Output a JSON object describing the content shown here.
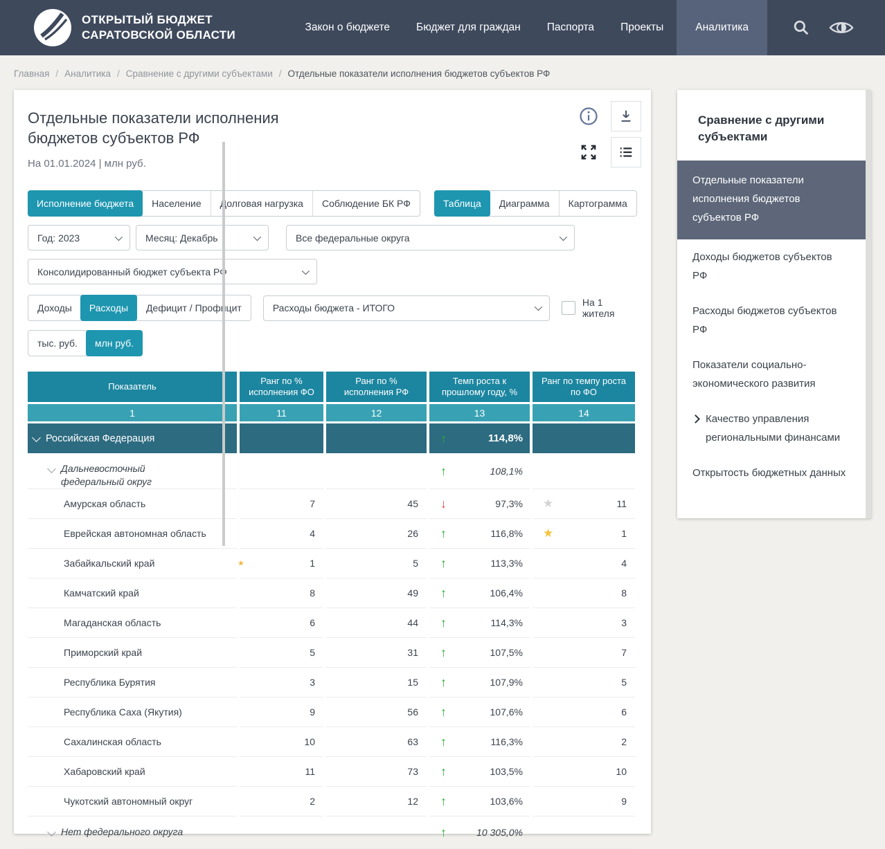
{
  "brand": {
    "line1": "ОТКРЫТЫЙ БЮДЖЕТ",
    "line2": "САРАТОВСКОЙ ОБЛАСТИ"
  },
  "nav": {
    "items": [
      {
        "label": "Закон о бюджете",
        "active": false
      },
      {
        "label": "Бюджет для граждан",
        "active": false
      },
      {
        "label": "Паспорта",
        "active": false
      },
      {
        "label": "Проекты",
        "active": false
      },
      {
        "label": "Аналитика",
        "active": true
      }
    ]
  },
  "breadcrumbs": [
    "Главная",
    "Аналитика",
    "Сравнение с другими субъектами",
    "Отдельные показатели исполнения бюджетов субъектов РФ"
  ],
  "page": {
    "title": "Отдельные показатели исполнения бюджетов субъектов РФ",
    "date_units": "На 01.01.2024 | млн руб."
  },
  "metric_tabs": [
    {
      "label": "Исполнение бюджета",
      "active": true
    },
    {
      "label": "Население",
      "active": false
    },
    {
      "label": "Долговая нагрузка",
      "active": false
    },
    {
      "label": "Соблюдение БК РФ",
      "active": false
    }
  ],
  "view_tabs": [
    {
      "label": "Таблица",
      "active": true
    },
    {
      "label": "Диаграмма",
      "active": false
    },
    {
      "label": "Картограмма",
      "active": false
    }
  ],
  "filters": {
    "year": "Год: 2023",
    "month": "Месяц: Декабрь",
    "district": "Все федеральные округа",
    "budget": "Консолидированный бюджет субъекта РФ",
    "indicator": "Расходы бюджета - ИТОГО",
    "per_capita_label": "На 1 жителя",
    "per_capita_checked": false
  },
  "measure_tabs": [
    {
      "label": "Доходы",
      "active": false
    },
    {
      "label": "Расходы",
      "active": true
    },
    {
      "label": "Дефицит / Профицит",
      "active": false
    }
  ],
  "unit_tabs": [
    {
      "label": "тыс. руб.",
      "active": false
    },
    {
      "label": "млн руб.",
      "active": true
    }
  ],
  "table": {
    "headers": [
      "Показатель",
      "Ранг по % исполнения ФО",
      "Ранг по % исполнения РФ",
      "Темп роста к прошлому году, %",
      "Ранг по темпу роста по ФО"
    ],
    "column_numbers": [
      "1",
      "11",
      "12",
      "13",
      "14"
    ],
    "rows": [
      {
        "name": "Российская Федерация",
        "level": "country",
        "expanded": true,
        "trend": "up",
        "growth": "114,8%"
      },
      {
        "name": "Дальневосточный федеральный округ",
        "level": "district",
        "expanded": true,
        "trend": "up",
        "growth": "108,1%"
      },
      {
        "name": "Амурская область",
        "level": "region",
        "rank_fo": "7",
        "rank_rf": "45",
        "trend": "down",
        "growth": "97,3%",
        "star": "gray",
        "rank_growth": "11"
      },
      {
        "name": "Еврейская автономная область",
        "level": "region",
        "rank_fo": "4",
        "rank_rf": "26",
        "trend": "up",
        "growth": "116,8%",
        "star": "gold",
        "rank_growth": "1"
      },
      {
        "name": "Забайкальский край",
        "level": "region",
        "rank_fo": "1",
        "rank_rf": "5",
        "trend": "up",
        "growth": "113,3%",
        "rank_growth": "4",
        "edge_star": true
      },
      {
        "name": "Камчатский край",
        "level": "region",
        "rank_fo": "8",
        "rank_rf": "49",
        "trend": "up",
        "growth": "106,4%",
        "rank_growth": "8"
      },
      {
        "name": "Магаданская область",
        "level": "region",
        "rank_fo": "6",
        "rank_rf": "44",
        "trend": "up",
        "growth": "114,3%",
        "rank_growth": "3"
      },
      {
        "name": "Приморский край",
        "level": "region",
        "rank_fo": "5",
        "rank_rf": "31",
        "trend": "up",
        "growth": "107,5%",
        "rank_growth": "7"
      },
      {
        "name": "Республика Бурятия",
        "level": "region",
        "rank_fo": "3",
        "rank_rf": "15",
        "trend": "up",
        "growth": "107,9%",
        "rank_growth": "5"
      },
      {
        "name": "Республика Саха (Якутия)",
        "level": "region",
        "rank_fo": "9",
        "rank_rf": "56",
        "trend": "up",
        "growth": "107,6%",
        "rank_growth": "6"
      },
      {
        "name": "Сахалинская область",
        "level": "region",
        "rank_fo": "10",
        "rank_rf": "63",
        "trend": "up",
        "growth": "116,3%",
        "rank_growth": "2"
      },
      {
        "name": "Хабаровский край",
        "level": "region",
        "rank_fo": "11",
        "rank_rf": "73",
        "trend": "up",
        "growth": "103,5%",
        "rank_growth": "10"
      },
      {
        "name": "Чукотский автономный округ",
        "level": "region",
        "rank_fo": "2",
        "rank_rf": "12",
        "trend": "up",
        "growth": "103,6%",
        "rank_growth": "9"
      },
      {
        "name": "Нет федерального округа",
        "level": "district",
        "expanded": true,
        "trend": "up",
        "growth": "10 305,0%"
      }
    ]
  },
  "sidebar": {
    "title": "Сравнение с другими субъектами",
    "items": [
      {
        "label": "Отдельные показатели исполнения бюджетов субъектов РФ",
        "active": true
      },
      {
        "label": "Доходы бюджетов субъектов РФ",
        "active": false
      },
      {
        "label": "Расходы бюджетов субъектов РФ",
        "active": false
      },
      {
        "label": "Показатели социально-экономического развития",
        "active": false
      },
      {
        "label": "Качество управления региональными финансами",
        "active": false,
        "expandable": true
      },
      {
        "label": "Открытость бюджетных данных",
        "active": false
      }
    ]
  },
  "icons": {
    "trend_up": "↑",
    "trend_down": "↓",
    "star": "★"
  },
  "colors": {
    "header_bar": "#3e495c",
    "nav_active": "#57637b",
    "accent_teal": "#1e96b0",
    "table_header": "#1c86a0",
    "table_subheader": "#38a2b4",
    "summary_row": "#2d6b80",
    "sidebar_active": "#5d6779",
    "up_green": "#2aad36",
    "down_red": "#e04545",
    "star_gold": "#f5c33b",
    "star_gray": "#d2d3d5"
  }
}
